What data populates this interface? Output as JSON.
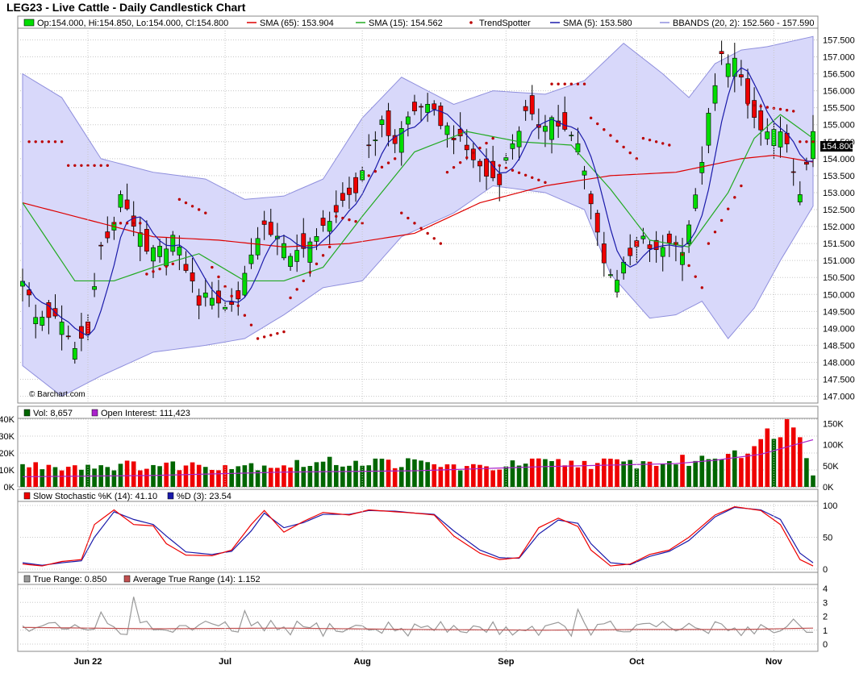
{
  "title": "LEG23 - Live Cattle - Daily Candlestick Chart",
  "watermark": "© Barchart.com",
  "last_price_tag": "154.800",
  "colors": {
    "up": "#00dd00",
    "down": "#ee0000",
    "sma65": "#dd0000",
    "sma15": "#22aa22",
    "sma5": "#1a1aaa",
    "bband_fill": "#d8d8fa",
    "bband_line": "#8f8fdd",
    "trendspotter": "#bb0000",
    "vol_up": "#006600",
    "vol_down": "#ee0000",
    "open_interest": "#aa22cc",
    "stoch_k": "#ee0000",
    "stoch_d": "#1a1aaa",
    "true_range": "#999999",
    "atr": "#c05050",
    "grid": "#c8c8c8"
  },
  "chart_data": {
    "type": "candlestick",
    "x_labels": [
      "Jun 22",
      "Jul",
      "Aug",
      "Sep",
      "Oct",
      "Nov"
    ],
    "x_label_index": [
      10,
      31,
      52,
      74,
      94,
      115
    ],
    "n_bars": 122,
    "price_panel": {
      "legend": [
        {
          "label": "Op:154.000, Hi:154.850, Lo:154.000, Cl:154.800",
          "swatch": "candle"
        },
        {
          "label": "SMA (65): 153.904",
          "swatch": "sma65"
        },
        {
          "label": "SMA (15): 154.562",
          "swatch": "sma15"
        },
        {
          "label": "TrendSpotter",
          "swatch": "dot"
        },
        {
          "label": "SMA (5): 153.580",
          "swatch": "sma5"
        },
        {
          "label": "BBANDS (20, 2): 152.560 - 157.590",
          "swatch": "bband"
        }
      ],
      "ylim": [
        146.8,
        158.2
      ],
      "y_ticks": [
        "147.000",
        "147.500",
        "148.000",
        "148.500",
        "149.000",
        "149.500",
        "150.000",
        "150.500",
        "151.000",
        "151.500",
        "152.000",
        "152.500",
        "153.000",
        "153.500",
        "154.000",
        "154.500",
        "155.000",
        "155.500",
        "156.000",
        "156.500",
        "157.000",
        "157.500"
      ],
      "close_anchors": [
        [
          0,
          150.5
        ],
        [
          2,
          149.3
        ],
        [
          4,
          149.4
        ],
        [
          6,
          149.1
        ],
        [
          8,
          148.4
        ],
        [
          10,
          149.0
        ],
        [
          12,
          151.4
        ],
        [
          14,
          152.0
        ],
        [
          15,
          153.0
        ],
        [
          17,
          152.1
        ],
        [
          19,
          151.2
        ],
        [
          21,
          151.3
        ],
        [
          23,
          151.7
        ],
        [
          25,
          150.8
        ],
        [
          27,
          149.8
        ],
        [
          29,
          150.0
        ],
        [
          31,
          149.6
        ],
        [
          33,
          149.9
        ],
        [
          35,
          151.3
        ],
        [
          37,
          151.9
        ],
        [
          39,
          151.8
        ],
        [
          41,
          151.0
        ],
        [
          43,
          151.5
        ],
        [
          45,
          151.6
        ],
        [
          47,
          152.3
        ],
        [
          49,
          152.6
        ],
        [
          51,
          153.0
        ],
        [
          53,
          154.4
        ],
        [
          55,
          155.0
        ],
        [
          57,
          154.5
        ],
        [
          59,
          155.2
        ],
        [
          61,
          155.6
        ],
        [
          63,
          155.3
        ],
        [
          65,
          154.9
        ],
        [
          67,
          154.5
        ],
        [
          69,
          154.0
        ],
        [
          71,
          153.5
        ],
        [
          73,
          153.4
        ],
        [
          75,
          154.5
        ],
        [
          77,
          155.3
        ],
        [
          79,
          155.0
        ],
        [
          81,
          155.2
        ],
        [
          83,
          154.8
        ],
        [
          85,
          154.4
        ],
        [
          87,
          152.8
        ],
        [
          89,
          150.9
        ],
        [
          91,
          150.5
        ],
        [
          93,
          151.1
        ],
        [
          95,
          151.6
        ],
        [
          97,
          151.2
        ],
        [
          99,
          151.6
        ],
        [
          101,
          151.4
        ],
        [
          103,
          152.8
        ],
        [
          105,
          155.2
        ],
        [
          107,
          157.0
        ],
        [
          109,
          156.9
        ],
        [
          111,
          155.6
        ],
        [
          113,
          154.8
        ],
        [
          115,
          154.7
        ],
        [
          117,
          154.6
        ],
        [
          118,
          153.5
        ],
        [
          119,
          152.8
        ],
        [
          120,
          153.9
        ],
        [
          121,
          154.8
        ]
      ],
      "sma65_anchors": [
        [
          0,
          152.7
        ],
        [
          10,
          152.2
        ],
        [
          20,
          151.7
        ],
        [
          30,
          151.6
        ],
        [
          40,
          151.4
        ],
        [
          50,
          151.5
        ],
        [
          60,
          151.8
        ],
        [
          70,
          152.7
        ],
        [
          80,
          153.2
        ],
        [
          90,
          153.5
        ],
        [
          100,
          153.6
        ],
        [
          110,
          154.0
        ],
        [
          115,
          154.1
        ],
        [
          121,
          153.9
        ]
      ],
      "sma15_anchors": [
        [
          0,
          152.7
        ],
        [
          8,
          150.4
        ],
        [
          14,
          150.4
        ],
        [
          20,
          150.8
        ],
        [
          27,
          151.2
        ],
        [
          34,
          150.4
        ],
        [
          40,
          150.4
        ],
        [
          46,
          150.8
        ],
        [
          52,
          152.3
        ],
        [
          60,
          154.2
        ],
        [
          68,
          154.8
        ],
        [
          76,
          154.5
        ],
        [
          84,
          154.4
        ],
        [
          90,
          153.1
        ],
        [
          96,
          151.6
        ],
        [
          102,
          151.4
        ],
        [
          108,
          153.0
        ],
        [
          112,
          154.6
        ],
        [
          116,
          155.3
        ],
        [
          121,
          154.6
        ]
      ],
      "bb_upper_anchors": [
        [
          0,
          156.5
        ],
        [
          6,
          155.8
        ],
        [
          12,
          154.0
        ],
        [
          20,
          153.6
        ],
        [
          28,
          153.4
        ],
        [
          34,
          152.8
        ],
        [
          40,
          152.9
        ],
        [
          46,
          153.4
        ],
        [
          52,
          155.2
        ],
        [
          58,
          156.4
        ],
        [
          66,
          155.6
        ],
        [
          72,
          156.0
        ],
        [
          80,
          155.9
        ],
        [
          86,
          156.3
        ],
        [
          92,
          157.4
        ],
        [
          98,
          156.5
        ],
        [
          102,
          155.8
        ],
        [
          106,
          156.8
        ],
        [
          110,
          157.2
        ],
        [
          114,
          157.3
        ],
        [
          121,
          157.6
        ]
      ],
      "bb_lower_anchors": [
        [
          0,
          147.9
        ],
        [
          6,
          147.0
        ],
        [
          12,
          147.6
        ],
        [
          20,
          148.3
        ],
        [
          28,
          148.5
        ],
        [
          34,
          148.7
        ],
        [
          40,
          149.4
        ],
        [
          46,
          150.2
        ],
        [
          52,
          150.4
        ],
        [
          58,
          151.7
        ],
        [
          66,
          152.4
        ],
        [
          72,
          153.2
        ],
        [
          80,
          153.0
        ],
        [
          86,
          152.5
        ],
        [
          90,
          150.6
        ],
        [
          96,
          149.3
        ],
        [
          100,
          149.4
        ],
        [
          104,
          149.8
        ],
        [
          108,
          148.7
        ],
        [
          112,
          149.6
        ],
        [
          116,
          151.0
        ],
        [
          121,
          152.6
        ]
      ],
      "trendspotter_segments": [
        [
          1,
          6,
          154.5,
          154.5
        ],
        [
          7,
          13,
          153.8,
          153.8
        ],
        [
          14,
          18,
          152.1,
          152.1
        ],
        [
          19,
          23,
          150.6,
          150.9
        ],
        [
          24,
          28,
          152.8,
          152.4
        ],
        [
          29,
          35,
          150.8,
          149.1
        ],
        [
          36,
          40,
          148.7,
          148.9
        ],
        [
          41,
          47,
          149.9,
          151.4
        ],
        [
          48,
          52,
          152.3,
          152.1
        ],
        [
          53,
          57,
          153.5,
          154.0
        ],
        [
          58,
          64,
          152.4,
          151.5
        ],
        [
          65,
          72,
          153.6,
          154.6
        ],
        [
          73,
          80,
          153.8,
          153.3
        ],
        [
          81,
          86,
          156.2,
          156.2
        ],
        [
          87,
          94,
          155.2,
          154.0
        ],
        [
          95,
          99,
          154.6,
          154.4
        ],
        [
          100,
          104,
          151.5,
          150.2
        ],
        [
          105,
          110,
          151.5,
          153.2
        ],
        [
          111,
          118,
          155.6,
          155.4
        ],
        [
          119,
          121,
          154.5,
          154.5
        ]
      ]
    },
    "volume_panel": {
      "legend": [
        {
          "label": "Vol: 8,657",
          "swatch": "vol"
        },
        {
          "label": "Open Interest: 111,423",
          "swatch": "oi"
        }
      ],
      "left_ylim": [
        0,
        40000
      ],
      "left_ticks": [
        "0K",
        "10K",
        "20K",
        "30K",
        "40K"
      ],
      "right_ylim": [
        0,
        160000
      ],
      "right_ticks": [
        "0K",
        "50K",
        "100K",
        "150K"
      ],
      "volume_anchors": [
        [
          0,
          12500
        ],
        [
          40,
          13000
        ],
        [
          50,
          15000
        ],
        [
          60,
          14000
        ],
        [
          70,
          11000
        ],
        [
          78,
          14000
        ],
        [
          86,
          14000
        ],
        [
          96,
          14000
        ],
        [
          104,
          16000
        ],
        [
          109,
          22000
        ],
        [
          113,
          24000
        ],
        [
          115,
          37000
        ],
        [
          117,
          37000
        ],
        [
          119,
          34000
        ],
        [
          121,
          8657
        ]
      ],
      "open_interest_anchors": [
        [
          0,
          24000
        ],
        [
          20,
          27000
        ],
        [
          40,
          35000
        ],
        [
          60,
          38000
        ],
        [
          80,
          48000
        ],
        [
          100,
          55000
        ],
        [
          106,
          63000
        ],
        [
          113,
          77000
        ],
        [
          119,
          103000
        ],
        [
          121,
          111423
        ]
      ]
    },
    "stochastic_panel": {
      "legend": [
        {
          "label": "Slow Stochastic %K (14): 41.10",
          "swatch": "stoch_k"
        },
        {
          "label": "%D (3): 23.54",
          "swatch": "stoch_d"
        }
      ],
      "ylim": [
        0,
        100
      ],
      "y_ticks": [
        "0",
        "50",
        "100"
      ],
      "k_anchors": [
        [
          0,
          8
        ],
        [
          3,
          5
        ],
        [
          6,
          12
        ],
        [
          9,
          15
        ],
        [
          11,
          70
        ],
        [
          14,
          93
        ],
        [
          17,
          70
        ],
        [
          20,
          68
        ],
        [
          22,
          40
        ],
        [
          25,
          22
        ],
        [
          29,
          21
        ],
        [
          32,
          30
        ],
        [
          35,
          70
        ],
        [
          37,
          92
        ],
        [
          40,
          58
        ],
        [
          43,
          75
        ],
        [
          46,
          89
        ],
        [
          50,
          85
        ],
        [
          53,
          93
        ],
        [
          57,
          90
        ],
        [
          60,
          88
        ],
        [
          63,
          85
        ],
        [
          66,
          52
        ],
        [
          70,
          25
        ],
        [
          73,
          15
        ],
        [
          76,
          18
        ],
        [
          79,
          65
        ],
        [
          82,
          80
        ],
        [
          85,
          67
        ],
        [
          87,
          30
        ],
        [
          90,
          5
        ],
        [
          93,
          8
        ],
        [
          96,
          23
        ],
        [
          99,
          30
        ],
        [
          102,
          50
        ],
        [
          106,
          85
        ],
        [
          109,
          98
        ],
        [
          113,
          92
        ],
        [
          116,
          70
        ],
        [
          119,
          15
        ],
        [
          121,
          5
        ],
        [
          122,
          40
        ]
      ],
      "d_anchors": [
        [
          0,
          10
        ],
        [
          3,
          6
        ],
        [
          6,
          10
        ],
        [
          9,
          13
        ],
        [
          11,
          50
        ],
        [
          14,
          90
        ],
        [
          17,
          78
        ],
        [
          20,
          70
        ],
        [
          22,
          52
        ],
        [
          25,
          27
        ],
        [
          29,
          23
        ],
        [
          32,
          28
        ],
        [
          35,
          60
        ],
        [
          37,
          88
        ],
        [
          40,
          65
        ],
        [
          43,
          73
        ],
        [
          46,
          86
        ],
        [
          50,
          86
        ],
        [
          53,
          92
        ],
        [
          57,
          91
        ],
        [
          60,
          88
        ],
        [
          63,
          86
        ],
        [
          66,
          60
        ],
        [
          70,
          30
        ],
        [
          73,
          18
        ],
        [
          76,
          17
        ],
        [
          79,
          55
        ],
        [
          82,
          77
        ],
        [
          85,
          72
        ],
        [
          87,
          40
        ],
        [
          90,
          10
        ],
        [
          93,
          7
        ],
        [
          96,
          20
        ],
        [
          99,
          28
        ],
        [
          102,
          45
        ],
        [
          106,
          82
        ],
        [
          109,
          97
        ],
        [
          113,
          93
        ],
        [
          116,
          78
        ],
        [
          119,
          25
        ],
        [
          121,
          10
        ],
        [
          122,
          24
        ]
      ]
    },
    "range_panel": {
      "legend": [
        {
          "label": "True Range: 0.850",
          "swatch": "tr"
        },
        {
          "label": "Average True Range (14): 1.152",
          "swatch": "atr"
        }
      ],
      "ylim": [
        0,
        4.6
      ],
      "y_ticks": [
        "0",
        "1",
        "2",
        "3",
        "4"
      ],
      "atr_anchors": [
        [
          0,
          1.2
        ],
        [
          20,
          1.1
        ],
        [
          40,
          1.15
        ],
        [
          60,
          1.05
        ],
        [
          80,
          1.0
        ],
        [
          95,
          1.05
        ],
        [
          110,
          1.05
        ],
        [
          121,
          1.15
        ]
      ],
      "tr_spikes": [
        [
          17,
          3.4
        ],
        [
          12,
          2.3
        ],
        [
          34,
          2.4
        ],
        [
          85,
          2.5
        ],
        [
          118,
          1.8
        ]
      ]
    }
  }
}
